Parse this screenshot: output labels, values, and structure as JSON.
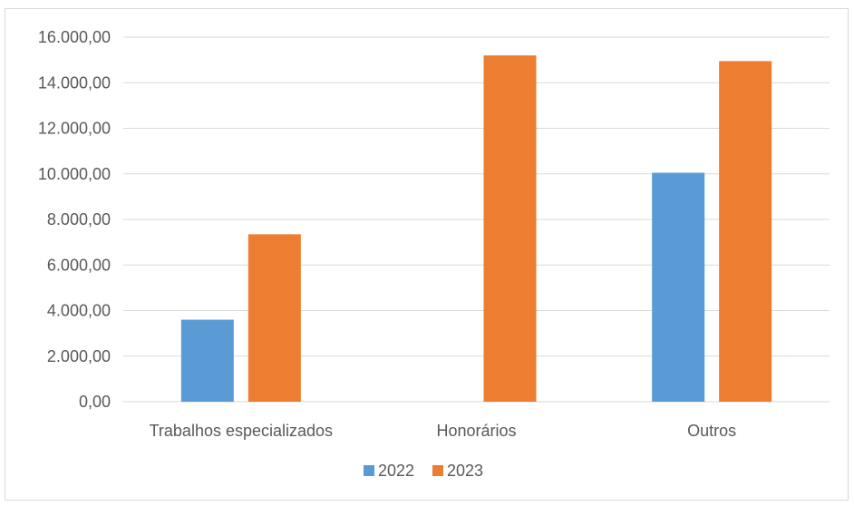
{
  "chart_data": {
    "type": "bar",
    "categories": [
      "Trabalhos especializados",
      "Honorários",
      "Outros"
    ],
    "series": [
      {
        "name": "2022",
        "values": [
          3600,
          0,
          10050
        ],
        "color": "#5b9bd5"
      },
      {
        "name": "2023",
        "values": [
          7350,
          15200,
          14950
        ],
        "color": "#ed7d31"
      }
    ],
    "ylim": [
      0,
      16000
    ],
    "yticks": [
      0,
      2000,
      4000,
      6000,
      8000,
      10000,
      12000,
      14000,
      16000
    ],
    "ytick_labels": [
      "0,00",
      "2.000,00",
      "4.000,00",
      "6.000,00",
      "8.000,00",
      "10.000,00",
      "12.000,00",
      "14.000,00",
      "16.000,00"
    ],
    "grid": true,
    "legend_position": "bottom",
    "gridline_color": "#d9d9d9",
    "text_color": "#595959"
  }
}
